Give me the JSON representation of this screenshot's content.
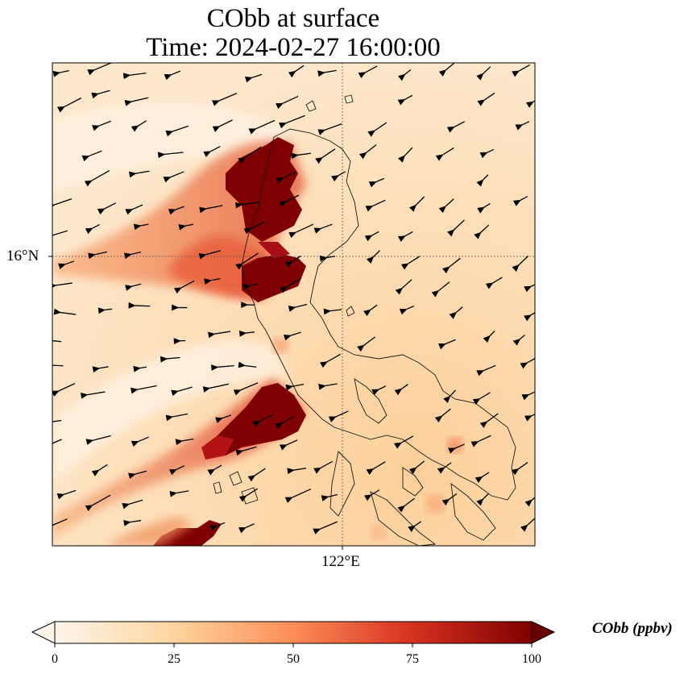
{
  "title": {
    "line1": "CObb at surface",
    "line2": "Time: 2024-02-27 16:00:00"
  },
  "axes": {
    "latitude_tick_label": "16°N",
    "longitude_tick_label": "122°E",
    "gridlines": "dotted"
  },
  "colorbar": {
    "label": "CObb (ppbv)",
    "ticks": [
      "0",
      "25",
      "50",
      "75",
      "100"
    ],
    "range": [
      0,
      100
    ],
    "extend": "both",
    "colormap": [
      "#fff5eb",
      "#fdd49e",
      "#fc8d59",
      "#d7301f",
      "#7f0000"
    ]
  },
  "map": {
    "background_color": "#fde4c4",
    "coastline_color": "#1a1a1a",
    "wind_vector_color": "#000000",
    "dominant_wind_direction": "northeasterly"
  }
}
